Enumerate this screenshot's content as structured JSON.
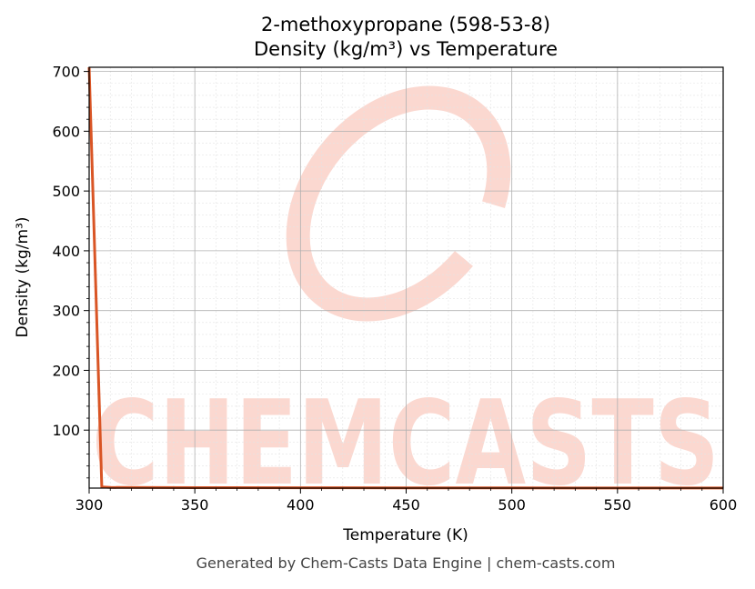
{
  "chart_data": {
    "type": "line",
    "title_line1": "2-methoxypropane (598-53-8)",
    "title_line2": "Density (kg/m³) vs Temperature",
    "xlabel": "Temperature (K)",
    "ylabel": "Density (kg/m³)",
    "xlim": [
      300,
      600
    ],
    "ylim": [
      3,
      707
    ],
    "x_ticks": [
      300,
      350,
      400,
      450,
      500,
      550,
      600
    ],
    "y_ticks": [
      100,
      200,
      300,
      400,
      500,
      600,
      700
    ],
    "grid": true,
    "series": [
      {
        "color": "#d95525",
        "x": [
          300,
          306,
          310,
          350,
          400,
          450,
          500,
          550,
          600
        ],
        "y": [
          707,
          5,
          4,
          3.8,
          3.6,
          3.4,
          3.3,
          3.2,
          3.1
        ]
      }
    ]
  },
  "watermark": {
    "text": "CHEMCASTS",
    "color": "#fbd8d0"
  },
  "footer": "Generated by Chem-Casts Data Engine | chem-casts.com"
}
